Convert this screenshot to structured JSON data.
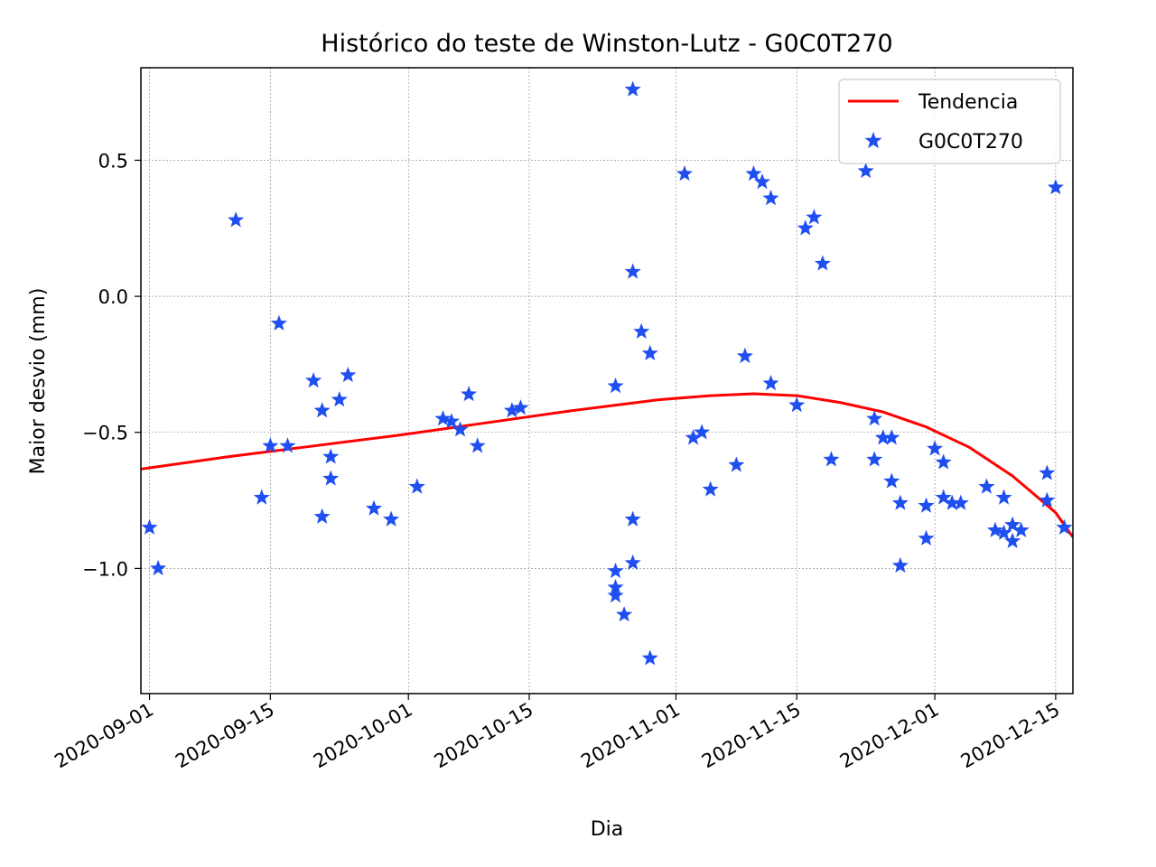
{
  "chart_data": {
    "type": "scatter",
    "title": "Histórico do teste de Winston-Lutz - G0C0T270",
    "xlabel": "Dia",
    "ylabel": "Maior desvio (mm)",
    "x_axis_type": "date",
    "xlim": [
      "2020-08-31",
      "2020-12-17"
    ],
    "ylim": [
      -1.46,
      0.84
    ],
    "x_ticks": [
      "2020-09-01",
      "2020-09-15",
      "2020-10-01",
      "2020-10-15",
      "2020-11-01",
      "2020-11-15",
      "2020-12-01",
      "2020-12-15"
    ],
    "y_ticks": [
      -1.0,
      -0.5,
      0.0,
      0.5
    ],
    "y_tick_labels": [
      "−1.0",
      "−0.5",
      "0.0",
      "0.5"
    ],
    "grid": true,
    "legend_position": "top-right",
    "series": [
      {
        "name": "Tendencia",
        "kind": "line",
        "color": "#ff0000",
        "points": [
          [
            "2020-08-31",
            -0.635
          ],
          [
            "2020-09-10",
            -0.59
          ],
          [
            "2020-09-20",
            -0.55
          ],
          [
            "2020-09-30",
            -0.51
          ],
          [
            "2020-10-10",
            -0.465
          ],
          [
            "2020-10-20",
            -0.42
          ],
          [
            "2020-10-30",
            -0.38
          ],
          [
            "2020-11-05",
            -0.365
          ],
          [
            "2020-11-10",
            -0.358
          ],
          [
            "2020-11-15",
            -0.365
          ],
          [
            "2020-11-20",
            -0.39
          ],
          [
            "2020-11-25",
            -0.425
          ],
          [
            "2020-11-30",
            -0.48
          ],
          [
            "2020-12-05",
            -0.555
          ],
          [
            "2020-12-10",
            -0.66
          ],
          [
            "2020-12-15",
            -0.795
          ],
          [
            "2020-12-17",
            -0.885
          ]
        ]
      },
      {
        "name": "G0C0T270",
        "kind": "scatter",
        "marker": "star",
        "color": "#1f4ff0",
        "points": [
          [
            "2020-09-01",
            -0.85
          ],
          [
            "2020-09-02",
            -1.0
          ],
          [
            "2020-09-11",
            0.28
          ],
          [
            "2020-09-14",
            -0.74
          ],
          [
            "2020-09-15",
            -0.55
          ],
          [
            "2020-09-16",
            -0.1
          ],
          [
            "2020-09-17",
            -0.55
          ],
          [
            "2020-09-20",
            -0.31
          ],
          [
            "2020-09-21",
            -0.42
          ],
          [
            "2020-09-21",
            -0.81
          ],
          [
            "2020-09-22",
            -0.59
          ],
          [
            "2020-09-22",
            -0.67
          ],
          [
            "2020-09-23",
            -0.38
          ],
          [
            "2020-09-24",
            -0.29
          ],
          [
            "2020-09-27",
            -0.78
          ],
          [
            "2020-09-29",
            -0.82
          ],
          [
            "2020-10-02",
            -0.7
          ],
          [
            "2020-10-05",
            -0.45
          ],
          [
            "2020-10-06",
            -0.46
          ],
          [
            "2020-10-07",
            -0.49
          ],
          [
            "2020-10-08",
            -0.36
          ],
          [
            "2020-10-09",
            -0.55
          ],
          [
            "2020-10-13",
            -0.42
          ],
          [
            "2020-10-14",
            -0.41
          ],
          [
            "2020-10-25",
            -0.33
          ],
          [
            "2020-10-25",
            -1.01
          ],
          [
            "2020-10-25",
            -1.07
          ],
          [
            "2020-10-25",
            -1.1
          ],
          [
            "2020-10-26",
            -1.17
          ],
          [
            "2020-10-27",
            0.76
          ],
          [
            "2020-10-27",
            0.09
          ],
          [
            "2020-10-27",
            -0.82
          ],
          [
            "2020-10-27",
            -0.98
          ],
          [
            "2020-10-28",
            -0.13
          ],
          [
            "2020-10-29",
            -0.21
          ],
          [
            "2020-10-29",
            -1.33
          ],
          [
            "2020-11-02",
            0.45
          ],
          [
            "2020-11-03",
            -0.52
          ],
          [
            "2020-11-04",
            -0.5
          ],
          [
            "2020-11-05",
            -0.71
          ],
          [
            "2020-11-08",
            -0.62
          ],
          [
            "2020-11-09",
            -0.22
          ],
          [
            "2020-11-10",
            0.45
          ],
          [
            "2020-11-11",
            0.42
          ],
          [
            "2020-11-12",
            0.36
          ],
          [
            "2020-11-12",
            -0.32
          ],
          [
            "2020-11-15",
            -0.4
          ],
          [
            "2020-11-16",
            0.25
          ],
          [
            "2020-11-17",
            0.29
          ],
          [
            "2020-11-18",
            0.12
          ],
          [
            "2020-11-19",
            -0.6
          ],
          [
            "2020-11-23",
            0.46
          ],
          [
            "2020-11-24",
            -0.45
          ],
          [
            "2020-11-24",
            -0.6
          ],
          [
            "2020-11-25",
            -0.52
          ],
          [
            "2020-11-26",
            -0.52
          ],
          [
            "2020-11-26",
            -0.68
          ],
          [
            "2020-11-27",
            -0.76
          ],
          [
            "2020-11-27",
            -0.99
          ],
          [
            "2020-11-30",
            -0.77
          ],
          [
            "2020-11-30",
            -0.89
          ],
          [
            "2020-12-01",
            -0.56
          ],
          [
            "2020-12-02",
            -0.61
          ],
          [
            "2020-12-02",
            -0.74
          ],
          [
            "2020-12-03",
            -0.76
          ],
          [
            "2020-12-04",
            -0.76
          ],
          [
            "2020-12-07",
            -0.7
          ],
          [
            "2020-12-08",
            -0.86
          ],
          [
            "2020-12-09",
            -0.74
          ],
          [
            "2020-12-09",
            -0.87
          ],
          [
            "2020-12-10",
            -0.84
          ],
          [
            "2020-12-10",
            -0.9
          ],
          [
            "2020-12-11",
            -0.86
          ],
          [
            "2020-12-14",
            -0.65
          ],
          [
            "2020-12-14",
            -0.75
          ],
          [
            "2020-12-15",
            0.4
          ],
          [
            "2020-12-16",
            -0.85
          ]
        ]
      }
    ]
  }
}
